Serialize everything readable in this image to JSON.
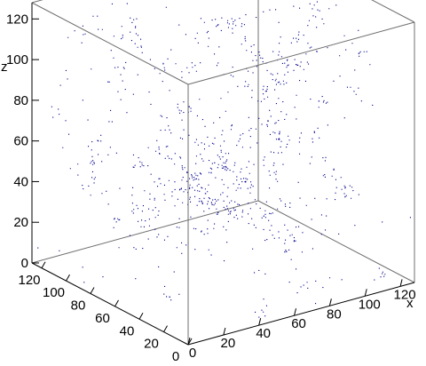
{
  "chart_data": {
    "type": "scatter",
    "projection": "3d",
    "title": "",
    "xlabel": "x",
    "ylabel": "",
    "zlabel": "z",
    "xlim": [
      0,
      128
    ],
    "ylim": [
      0,
      128
    ],
    "zlim": [
      0,
      128
    ],
    "x_ticks": [
      "0",
      "20",
      "40",
      "60",
      "80",
      "100",
      "120"
    ],
    "y_ticks": [
      "0",
      "20",
      "40",
      "60",
      "80",
      "100",
      "120"
    ],
    "z_ticks": [
      "0",
      "20",
      "40",
      "60",
      "80",
      "100",
      "120"
    ],
    "series": [
      {
        "marker_color": "#00008b",
        "distribution": "clustered filamentary point cloud (cosmic-web-like)",
        "approx_point_count": 10000
      }
    ],
    "grid": false,
    "box_edges_visible": true
  }
}
